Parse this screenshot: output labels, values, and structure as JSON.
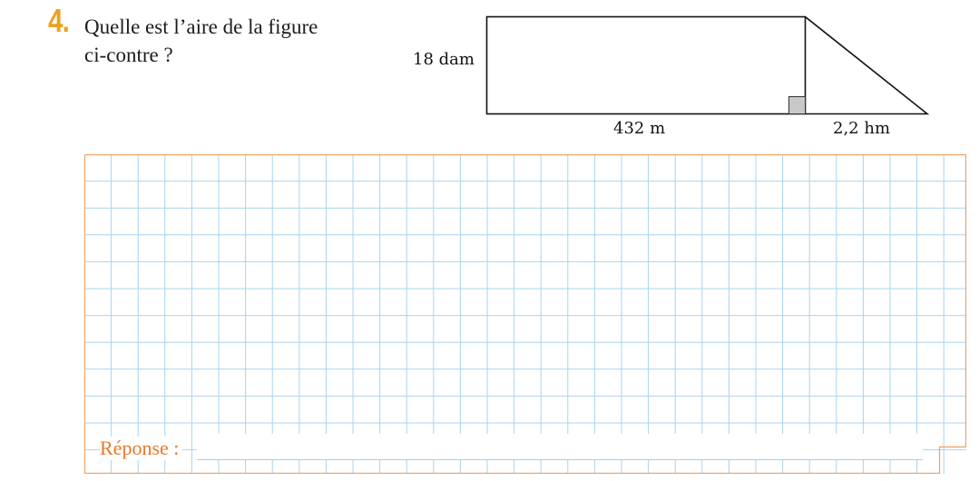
{
  "exercise": {
    "number": "4.",
    "question_line1": "Quelle est l’aire de la figure",
    "question_line2": "ci-contre ?"
  },
  "figure": {
    "height_label": "18 dam",
    "base_label": "432 m",
    "triangle_base_label": "2,2 hm"
  },
  "answer": {
    "label": "Réponse :",
    "value": ""
  },
  "colors": {
    "accent": "#f0a020",
    "answer_label": "#e8782a",
    "grid_line": "#a9d4ee",
    "box_border": "#eea060"
  }
}
